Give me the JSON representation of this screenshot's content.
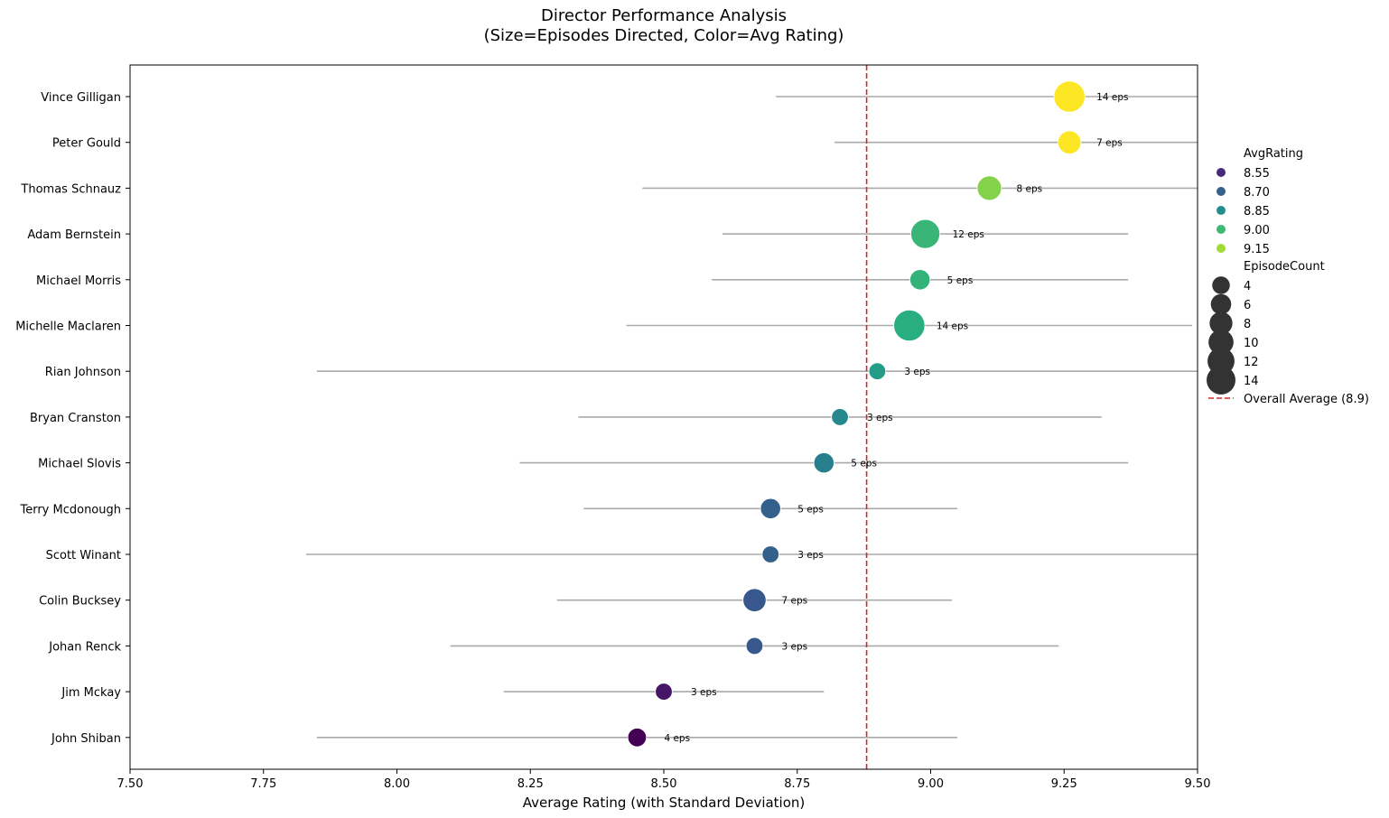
{
  "chart_data": {
    "type": "scatter",
    "title": "Director Performance Analysis",
    "subtitle": "(Size=Episodes Directed, Color=Avg Rating)",
    "xlabel": "Average Rating (with Standard Deviation)",
    "ylabel": "",
    "xlim": [
      7.5,
      9.5
    ],
    "xticks": [
      7.5,
      7.75,
      8.0,
      8.25,
      8.5,
      8.75,
      9.0,
      9.25,
      9.5
    ],
    "xtick_labels": [
      "7.50",
      "7.75",
      "8.00",
      "8.25",
      "8.50",
      "8.75",
      "9.00",
      "9.25",
      "9.50"
    ],
    "grid": false,
    "overall_average": 8.88,
    "overall_average_label": "Overall Average (8.9)",
    "overall_average_color": "#d62728",
    "errorbar_color": "#aaaaaa",
    "legend_position": "right",
    "colormap": "viridis",
    "color_range": [
      8.45,
      9.26
    ],
    "directors": [
      {
        "name": "Vince Gilligan",
        "avg": 9.26,
        "std": 0.55,
        "episodes": 14,
        "label": "14 eps"
      },
      {
        "name": "Peter Gould",
        "avg": 9.26,
        "std": 0.44,
        "episodes": 7,
        "label": "7 eps"
      },
      {
        "name": "Thomas Schnauz",
        "avg": 9.11,
        "std": 0.65,
        "episodes": 8,
        "label": "8 eps"
      },
      {
        "name": "Adam Bernstein",
        "avg": 8.99,
        "std": 0.38,
        "episodes": 12,
        "label": "12 eps"
      },
      {
        "name": "Michael Morris",
        "avg": 8.98,
        "std": 0.39,
        "episodes": 5,
        "label": "5 eps"
      },
      {
        "name": "Michelle Maclaren",
        "avg": 8.96,
        "std": 0.53,
        "episodes": 14,
        "label": "14 eps"
      },
      {
        "name": "Rian Johnson",
        "avg": 8.9,
        "std": 1.05,
        "episodes": 3,
        "label": "3 eps"
      },
      {
        "name": "Bryan Cranston",
        "avg": 8.83,
        "std": 0.49,
        "episodes": 3,
        "label": "3 eps"
      },
      {
        "name": "Michael Slovis",
        "avg": 8.8,
        "std": 0.57,
        "episodes": 5,
        "label": "5 eps"
      },
      {
        "name": "Terry Mcdonough",
        "avg": 8.7,
        "std": 0.35,
        "episodes": 5,
        "label": "5 eps"
      },
      {
        "name": "Scott Winant",
        "avg": 8.7,
        "std": 0.87,
        "episodes": 3,
        "label": "3 eps"
      },
      {
        "name": "Colin Bucksey",
        "avg": 8.67,
        "std": 0.37,
        "episodes": 7,
        "label": "7 eps"
      },
      {
        "name": "Johan Renck",
        "avg": 8.67,
        "std": 0.57,
        "episodes": 3,
        "label": "3 eps"
      },
      {
        "name": "Jim Mckay",
        "avg": 8.5,
        "std": 0.3,
        "episodes": 3,
        "label": "3 eps"
      },
      {
        "name": "John Shiban",
        "avg": 8.45,
        "std": 0.6,
        "episodes": 4,
        "label": "4 eps"
      }
    ],
    "legend": {
      "color_title": "AvgRating",
      "color_entries": [
        {
          "label": "8.55",
          "value": 8.55
        },
        {
          "label": "8.70",
          "value": 8.7
        },
        {
          "label": "8.85",
          "value": 8.85
        },
        {
          "label": "9.00",
          "value": 9.0
        },
        {
          "label": "9.15",
          "value": 9.15
        }
      ],
      "size_title": "EpisodeCount",
      "size_entries": [
        {
          "label": "4",
          "value": 4
        },
        {
          "label": "6",
          "value": 6
        },
        {
          "label": "8",
          "value": 8
        },
        {
          "label": "10",
          "value": 10
        },
        {
          "label": "12",
          "value": 12
        },
        {
          "label": "14",
          "value": 14
        }
      ]
    }
  }
}
